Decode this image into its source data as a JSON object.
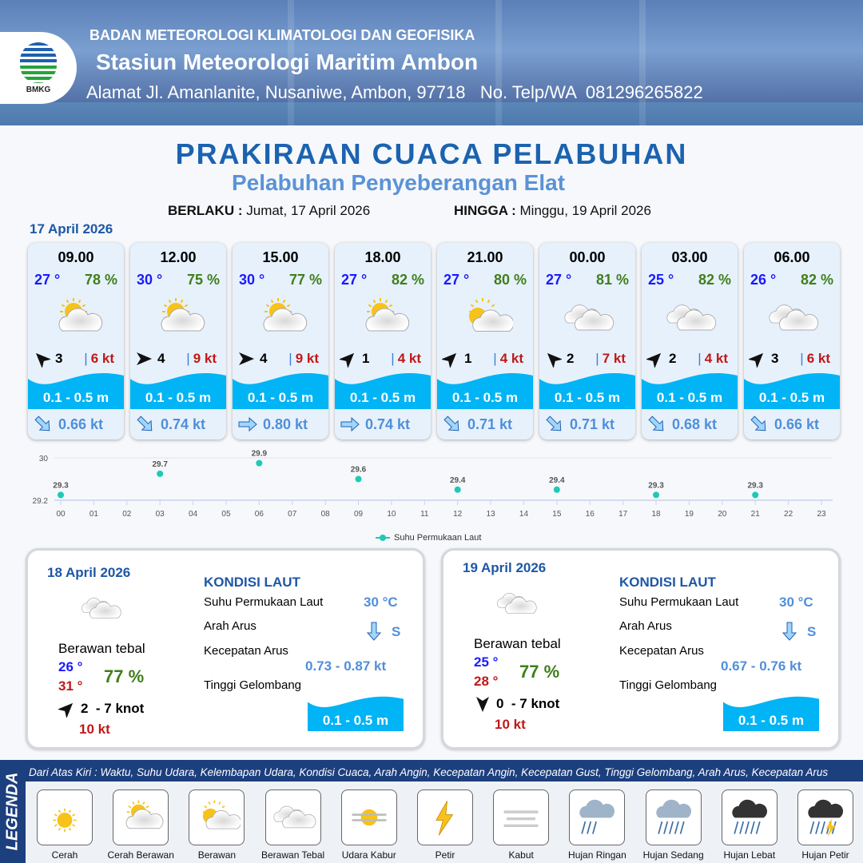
{
  "header": {
    "logo_text": "BMKG",
    "agency": "BADAN METEOROLOGI KLIMATOLOGI DAN GEOFISIKA",
    "station": "Stasiun Meteorologi Maritim Ambon",
    "address": "Alamat Jl. Amanlanite, Nusaniwe, Ambon, 97718   No. Telp/WA  081296265822"
  },
  "title": "PRAKIRAAN CUACA PELABUHAN",
  "subtitle": "Pelabuhan Penyeberangan Elat",
  "validity": {
    "from_label": "BERLAKU :",
    "from": "Jumat, 17 April 2026",
    "to_label": "HINGGA :",
    "to": "Minggu, 19 April 2026"
  },
  "date1": "17 April 2026",
  "forecasts": [
    {
      "time": "09.00",
      "temp": "27 °",
      "hum": "78 %",
      "cond": "cerah-berawan",
      "wind_dir": "NW",
      "wind": "3",
      "gust": "6 kt",
      "wave": "0.1 - 0.5 m",
      "cur_dir": "SE",
      "cur": "0.66 kt"
    },
    {
      "time": "12.00",
      "temp": "30 °",
      "hum": "75 %",
      "cond": "cerah-berawan",
      "wind_dir": "E",
      "wind": "4",
      "gust": "9 kt",
      "wave": "0.1 - 0.5 m",
      "cur_dir": "SE",
      "cur": "0.74 kt"
    },
    {
      "time": "15.00",
      "temp": "30 °",
      "hum": "77 %",
      "cond": "cerah-berawan",
      "wind_dir": "E",
      "wind": "4",
      "gust": "9 kt",
      "wave": "0.1 - 0.5 m",
      "cur_dir": "E",
      "cur": "0.80 kt"
    },
    {
      "time": "18.00",
      "temp": "27 °",
      "hum": "82 %",
      "cond": "cerah-berawan",
      "wind_dir": "NE",
      "wind": "1",
      "gust": "4 kt",
      "wave": "0.1 - 0.5 m",
      "cur_dir": "E",
      "cur": "0.74 kt"
    },
    {
      "time": "21.00",
      "temp": "27 °",
      "hum": "80 %",
      "cond": "berawan",
      "wind_dir": "NE",
      "wind": "1",
      "gust": "4 kt",
      "wave": "0.1 - 0.5 m",
      "cur_dir": "SE",
      "cur": "0.71 kt"
    },
    {
      "time": "00.00",
      "temp": "27 °",
      "hum": "81 %",
      "cond": "berawan-tebal",
      "wind_dir": "NW",
      "wind": "2",
      "gust": "7 kt",
      "wave": "0.1 - 0.5 m",
      "cur_dir": "SE",
      "cur": "0.71 kt"
    },
    {
      "time": "03.00",
      "temp": "25 °",
      "hum": "82 %",
      "cond": "berawan-tebal",
      "wind_dir": "NE",
      "wind": "2",
      "gust": "4 kt",
      "wave": "0.1 - 0.5 m",
      "cur_dir": "SE",
      "cur": "0.68 kt"
    },
    {
      "time": "06.00",
      "temp": "26 °",
      "hum": "82 %",
      "cond": "berawan-tebal",
      "wind_dir": "NE",
      "wind": "3",
      "gust": "6 kt",
      "wave": "0.1 - 0.5 m",
      "cur_dir": "SE",
      "cur": "0.66 kt"
    }
  ],
  "chart_data": {
    "type": "scatter",
    "x_ticks": [
      "00",
      "01",
      "02",
      "03",
      "04",
      "05",
      "06",
      "07",
      "08",
      "09",
      "10",
      "11",
      "12",
      "13",
      "14",
      "15",
      "16",
      "17",
      "18",
      "19",
      "20",
      "21",
      "22",
      "23"
    ],
    "y_ticks": [
      "29.2",
      "30"
    ],
    "ylim": [
      29.2,
      30
    ],
    "points": [
      {
        "x": 0,
        "y": 29.3
      },
      {
        "x": 3,
        "y": 29.7
      },
      {
        "x": 6,
        "y": 29.9
      },
      {
        "x": 9,
        "y": 29.6
      },
      {
        "x": 12,
        "y": 29.4
      },
      {
        "x": 15,
        "y": 29.4
      },
      {
        "x": 18,
        "y": 29.3
      },
      {
        "x": 21,
        "y": 29.3
      }
    ],
    "series_name": "Suhu Permukaan Laut",
    "color": "#1ec9b7",
    "legend": "bottom"
  },
  "days": [
    {
      "date": "18 April 2026",
      "cond": "Berawan tebal",
      "tmin": "26 °",
      "tmax": "31 °",
      "hum": "77 %",
      "wind_dir": "NE",
      "wind": "2  - 7 knot",
      "gust": "10 kt",
      "kondisi": "KONDISI LAUT",
      "sst_label": "Suhu Permukaan Laut",
      "sst": "30 °C",
      "dir_label": "Arah Arus",
      "cur_dir": "S",
      "speed_label": "Kecepatan Arus",
      "speed": "0.73 - 0.87 kt",
      "wave_label": "Tinggi Gelombang",
      "wave": "0.1 - 0.5 m"
    },
    {
      "date": "19 April 2026",
      "cond": "Berawan tebal",
      "tmin": "25 °",
      "tmax": "28 °",
      "hum": "77 %",
      "wind_dir": "S",
      "wind": "0  - 7 knot",
      "gust": "10 kt",
      "kondisi": "KONDISI LAUT",
      "sst_label": "Suhu Permukaan Laut",
      "sst": "30 °C",
      "dir_label": "Arah Arus",
      "cur_dir": "S",
      "speed_label": "Kecepatan Arus",
      "speed": "0.67 - 0.76 kt",
      "wave_label": "Tinggi Gelombang",
      "wave": "0.1 - 0.5 m"
    }
  ],
  "legend": {
    "side": "LEGENDA",
    "description": "Dari Atas Kiri : Waktu, Suhu Udara, Kelembapan Udara, Kondisi Cuaca, Arah Angin, Kecepatan Angin, Kecepatan Gust, Tinggi Gelombang, Arah Arus, Kecepatan Arus",
    "items": [
      {
        "label": "Cerah",
        "icon": "cerah"
      },
      {
        "label": "Cerah Berawan",
        "icon": "cerah-berawan"
      },
      {
        "label": "Berawan",
        "icon": "berawan"
      },
      {
        "label": "Berawan Tebal",
        "icon": "berawan-tebal"
      },
      {
        "label": "Udara Kabur",
        "icon": "udara-kabur"
      },
      {
        "label": "Petir",
        "icon": "petir"
      },
      {
        "label": "Kabut",
        "icon": "kabut"
      },
      {
        "label": "Hujan Ringan",
        "icon": "hujan-ringan"
      },
      {
        "label": "Hujan Sedang",
        "icon": "hujan-sedang"
      },
      {
        "label": "Hujan Lebat",
        "icon": "hujan-lebat"
      },
      {
        "label": "Hujan Petir",
        "icon": "hujan-petir"
      }
    ]
  },
  "colors": {
    "wave": "#00b4f5",
    "title": "#1b63b0",
    "temp": "#1a1aff",
    "humidity": "#3f7f1a",
    "gust": "#c01818",
    "current": "#4f8fd9"
  }
}
